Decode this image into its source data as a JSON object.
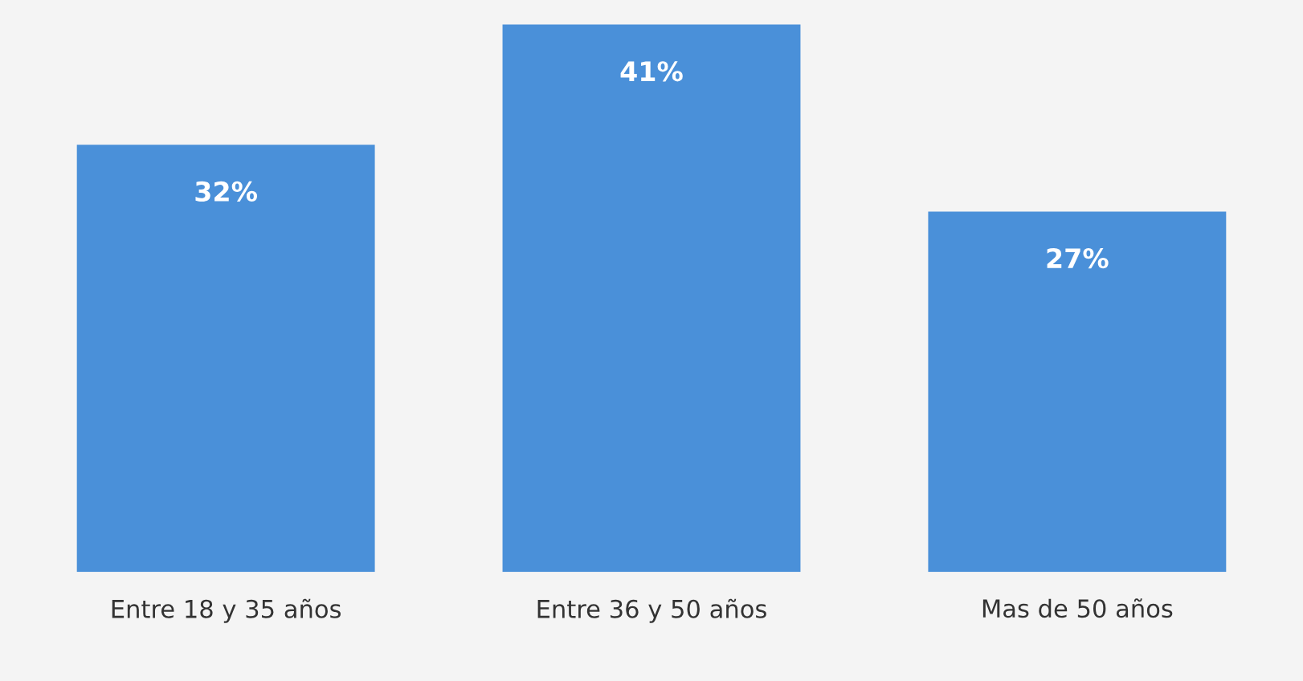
{
  "chart_data": {
    "type": "bar",
    "categories": [
      "Entre 18 y 35 años",
      "Entre 36 y 50 años",
      "Mas de 50 años"
    ],
    "values": [
      32,
      41,
      27
    ],
    "value_labels": [
      "32%",
      "41%",
      "27%"
    ],
    "color": "#4a90d9",
    "grid": false,
    "legend": false
  }
}
